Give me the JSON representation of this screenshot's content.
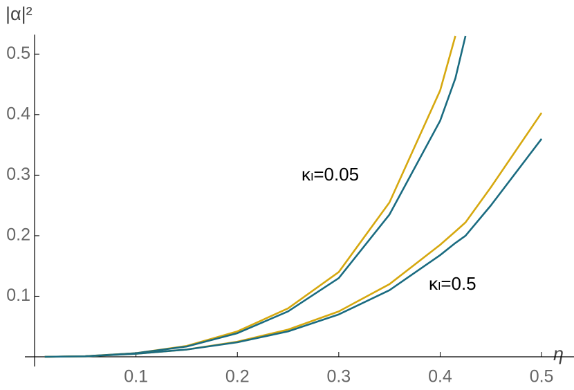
{
  "chart_data": {
    "type": "line",
    "x_label": "η",
    "y_label": "|α|²",
    "annotations": [
      "κₗ=0.05",
      "κₗ=0.5"
    ],
    "x": [
      0.01,
      0.05,
      0.1,
      0.15,
      0.2,
      0.25,
      0.3,
      0.35,
      0.4,
      0.415,
      0.425,
      0.45,
      0.5
    ],
    "series": [
      {
        "color": "#d6a80f",
        "values": [
          0,
          0.001,
          0.006,
          0.018,
          0.042,
          0.08,
          0.14,
          0.255,
          0.44,
          0.53,
          null,
          null,
          null
        ]
      },
      {
        "color": "#1a6b80",
        "values": [
          0,
          0.001,
          0.006,
          0.017,
          0.039,
          0.075,
          0.13,
          0.235,
          0.39,
          0.46,
          0.53,
          null,
          null
        ]
      },
      {
        "color": "#d6a80f",
        "values": [
          0,
          0.0008,
          0.005,
          0.012,
          0.025,
          0.045,
          0.075,
          0.12,
          0.185,
          0.207,
          0.222,
          0.28,
          0.403
        ]
      },
      {
        "color": "#1a6b80",
        "values": [
          0,
          0.0008,
          0.005,
          0.012,
          0.024,
          0.042,
          0.07,
          0.11,
          0.168,
          0.188,
          0.2,
          0.25,
          0.36
        ]
      }
    ],
    "xlim": [
      0,
      0.532
    ],
    "ylim": [
      0,
      0.53
    ],
    "xticks": [
      0.1,
      0.2,
      0.3,
      0.4,
      0.5
    ],
    "yticks": [
      0.1,
      0.2,
      0.3,
      0.4,
      0.5
    ]
  }
}
